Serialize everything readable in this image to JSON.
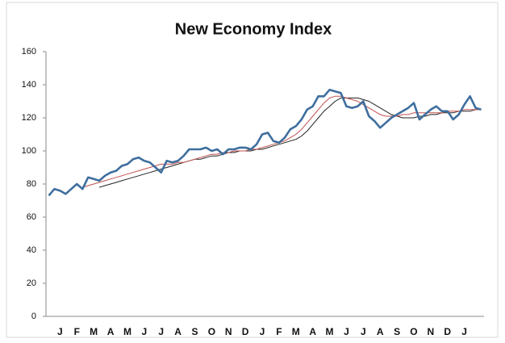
{
  "chart_data": {
    "type": "line",
    "title": "New Economy Index",
    "categories": [
      null,
      null,
      "J",
      null,
      null,
      "F",
      null,
      null,
      "M",
      null,
      null,
      "A",
      null,
      null,
      "M",
      null,
      null,
      "J",
      null,
      null,
      "J",
      null,
      null,
      "A",
      null,
      null,
      "S",
      null,
      null,
      "O",
      null,
      null,
      "N",
      null,
      null,
      "D",
      null,
      null,
      "J",
      null,
      null,
      "F",
      null,
      null,
      "M",
      null,
      null,
      "A",
      null,
      null,
      "M",
      null,
      null,
      "J",
      null,
      null,
      "J",
      null,
      null,
      "A",
      null,
      null,
      "S",
      null,
      null,
      "O",
      null,
      null,
      "N",
      null,
      null,
      "D",
      null,
      null,
      "J",
      null,
      null,
      null
    ],
    "series": [
      {
        "color": "#3e6e9e",
        "values": [
          73,
          77,
          76,
          74,
          77,
          80,
          77,
          84,
          83,
          82,
          85,
          87,
          88,
          91,
          92,
          95,
          96,
          94,
          93,
          90,
          87,
          94,
          93,
          94,
          97,
          101,
          101,
          101,
          102,
          100,
          101,
          98,
          101,
          101,
          102,
          102,
          101,
          104,
          110,
          111,
          106,
          105,
          108,
          113,
          115,
          119,
          125,
          127,
          133,
          133,
          137,
          136,
          135,
          127,
          126,
          127,
          130,
          121,
          118,
          114,
          117,
          120,
          122,
          124,
          126,
          129,
          119,
          122,
          125,
          127,
          124,
          124,
          119,
          122,
          128,
          133,
          126,
          125
        ]
      },
      {
        "color": "#c0504d",
        "values": [
          null,
          null,
          null,
          null,
          null,
          null,
          78,
          79,
          80,
          81,
          82,
          83,
          84,
          85,
          86,
          87,
          88,
          89,
          90,
          91,
          92,
          92,
          92,
          93,
          93,
          94,
          95,
          96,
          97,
          98,
          98,
          99,
          99,
          100,
          100,
          100,
          101,
          101,
          102,
          103,
          104,
          105,
          106,
          108,
          110,
          113,
          117,
          121,
          125,
          129,
          132,
          133,
          133,
          132,
          131,
          130,
          128,
          126,
          124,
          122,
          121,
          121,
          121,
          122,
          122,
          123,
          123,
          123,
          123,
          123,
          123,
          124,
          124,
          124,
          125,
          125,
          125,
          125
        ]
      },
      {
        "color": "#222222",
        "values": [
          null,
          null,
          null,
          null,
          null,
          null,
          null,
          null,
          null,
          78,
          79,
          80,
          81,
          82,
          83,
          84,
          85,
          86,
          87,
          88,
          89,
          90,
          91,
          92,
          93,
          94,
          95,
          95,
          96,
          97,
          97,
          98,
          99,
          99,
          100,
          100,
          100,
          101,
          101,
          102,
          103,
          104,
          105,
          106,
          107,
          109,
          112,
          116,
          120,
          124,
          127,
          130,
          132,
          132,
          132,
          132,
          131,
          130,
          128,
          126,
          124,
          122,
          121,
          120,
          120,
          120,
          121,
          121,
          122,
          122,
          123,
          123,
          123,
          124,
          124,
          124,
          125,
          125
        ]
      }
    ],
    "ylim": [
      0,
      160
    ],
    "yticks": [
      0,
      20,
      40,
      60,
      80,
      100,
      120,
      140,
      160
    ]
  }
}
